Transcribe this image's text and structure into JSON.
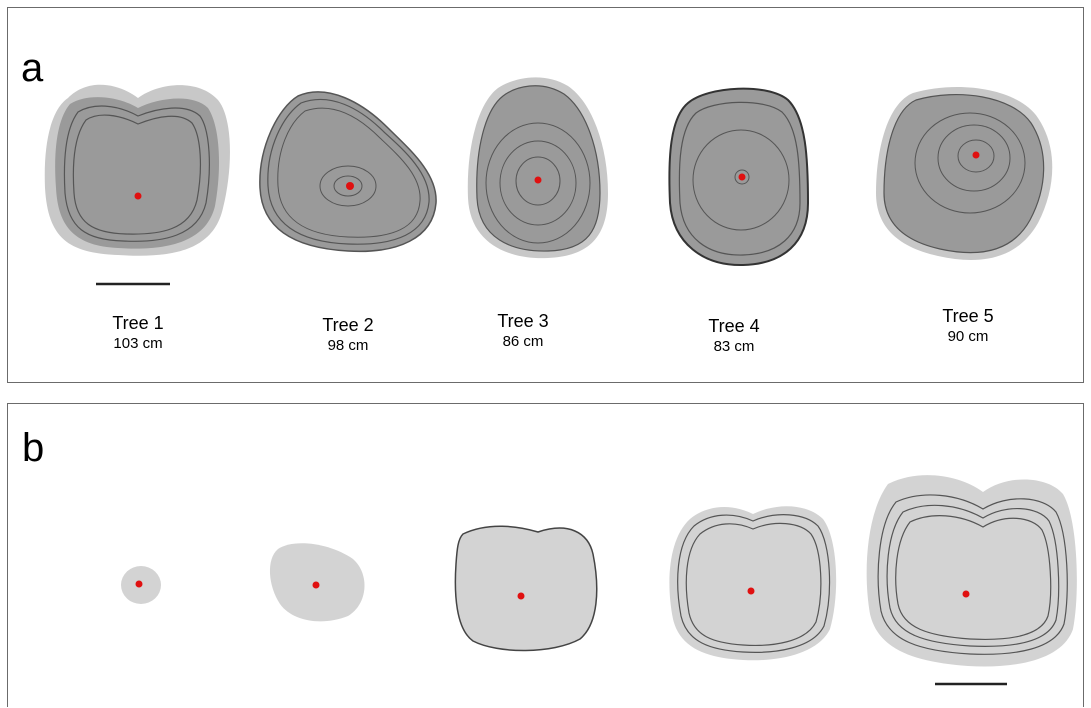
{
  "panels": {
    "a": {
      "letter": "a",
      "trees": [
        {
          "name": "Tree 1",
          "size": "103 cm"
        },
        {
          "name": "Tree 2",
          "size": "98 cm"
        },
        {
          "name": "Tree 3",
          "size": "86 cm"
        },
        {
          "name": "Tree 4",
          "size": "83 cm"
        },
        {
          "name": "Tree 5",
          "size": "90 cm"
        }
      ]
    },
    "b": {
      "letter": "b"
    }
  },
  "colors": {
    "outer": "#c8c8c8",
    "inner": "#9a9a9a",
    "ring": "#555555",
    "growth": "#d3d3d3",
    "pith": "#e01010",
    "border": "#6b6b6b"
  }
}
